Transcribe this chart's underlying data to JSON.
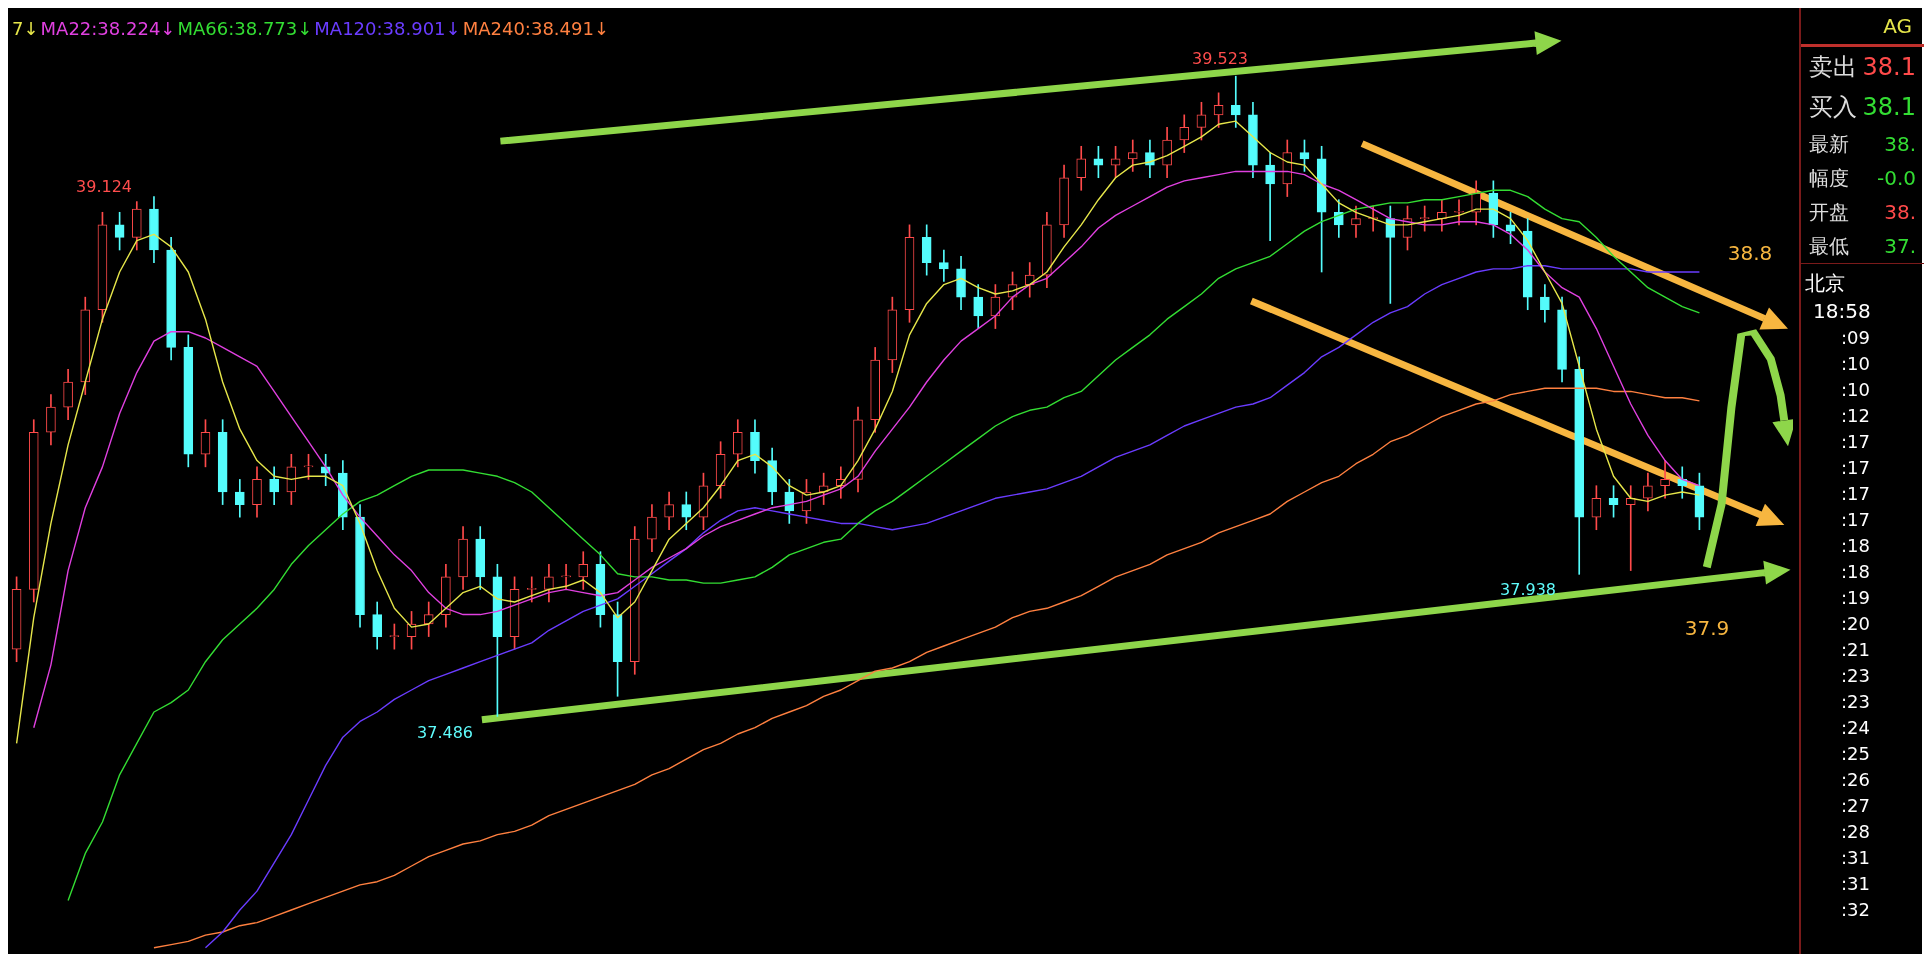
{
  "chart_data": [
    {
      "type": "candlestick",
      "legend": "top left",
      "tick_labels": false,
      "ylim": [
        36.73,
        39.74
      ],
      "categories": [
        null,
        null,
        null,
        null,
        null,
        null,
        null,
        null,
        null,
        null,
        null,
        null,
        null,
        null,
        null,
        null,
        null,
        null,
        null,
        null,
        null,
        null,
        null,
        null,
        null,
        null,
        null,
        null,
        null,
        null,
        null,
        null,
        null,
        null,
        null,
        null,
        null,
        null,
        null,
        null,
        null,
        null,
        null,
        null,
        null,
        null,
        null,
        null,
        null,
        null,
        null,
        null,
        null,
        null,
        null,
        null,
        null,
        null,
        null,
        null,
        null,
        null,
        null,
        null,
        null,
        null,
        null,
        null,
        null,
        null,
        null,
        null,
        null,
        null,
        null,
        null,
        null,
        null,
        null,
        null,
        null,
        null,
        null,
        null,
        null,
        null,
        null,
        null,
        null,
        null,
        null,
        null,
        null,
        null,
        null,
        null,
        null,
        null,
        null
      ],
      "ohlc": [
        [
          37.7,
          37.93,
          37.66,
          37.89
        ],
        [
          37.89,
          38.43,
          37.85,
          38.39
        ],
        [
          38.39,
          38.51,
          38.35,
          38.47
        ],
        [
          38.47,
          38.59,
          38.43,
          38.55
        ],
        [
          38.55,
          38.82,
          38.51,
          38.78
        ],
        [
          38.78,
          39.09,
          38.74,
          39.05
        ],
        [
          39.05,
          39.09,
          38.97,
          39.01
        ],
        [
          39.01,
          39.124,
          38.97,
          39.1
        ],
        [
          39.1,
          39.14,
          38.93,
          38.97
        ],
        [
          38.97,
          39.01,
          38.62,
          38.66
        ],
        [
          38.66,
          38.7,
          38.28,
          38.32
        ],
        [
          38.32,
          38.43,
          38.28,
          38.39
        ],
        [
          38.39,
          38.43,
          38.16,
          38.2
        ],
        [
          38.2,
          38.24,
          38.12,
          38.16
        ],
        [
          38.16,
          38.28,
          38.12,
          38.24
        ],
        [
          38.24,
          38.28,
          38.16,
          38.2
        ],
        [
          38.2,
          38.32,
          38.16,
          38.28
        ],
        [
          38.28,
          38.32,
          38.24,
          38.28
        ],
        [
          38.28,
          38.32,
          38.22,
          38.26
        ],
        [
          38.26,
          38.3,
          38.08,
          38.12
        ],
        [
          38.12,
          38.16,
          37.77,
          37.81
        ],
        [
          37.81,
          37.85,
          37.7,
          37.74
        ],
        [
          37.74,
          37.78,
          37.7,
          37.74
        ],
        [
          37.74,
          37.82,
          37.7,
          37.78
        ],
        [
          37.78,
          37.85,
          37.74,
          37.81
        ],
        [
          37.81,
          37.97,
          37.77,
          37.93
        ],
        [
          37.93,
          38.09,
          37.89,
          38.05
        ],
        [
          38.05,
          38.09,
          37.89,
          37.93
        ],
        [
          37.93,
          37.97,
          37.486,
          37.74
        ],
        [
          37.74,
          37.93,
          37.7,
          37.89
        ],
        [
          37.89,
          37.93,
          37.85,
          37.89
        ],
        [
          37.89,
          37.97,
          37.85,
          37.93
        ],
        [
          37.93,
          37.97,
          37.89,
          37.93
        ],
        [
          37.93,
          38.01,
          37.89,
          37.97
        ],
        [
          37.97,
          38.01,
          37.77,
          37.81
        ],
        [
          37.81,
          37.85,
          37.55,
          37.66
        ],
        [
          37.66,
          38.09,
          37.62,
          38.05
        ],
        [
          38.05,
          38.16,
          38.01,
          38.12
        ],
        [
          38.12,
          38.2,
          38.08,
          38.16
        ],
        [
          38.16,
          38.2,
          38.08,
          38.12
        ],
        [
          38.12,
          38.26,
          38.08,
          38.22
        ],
        [
          38.22,
          38.36,
          38.18,
          38.32
        ],
        [
          38.32,
          38.43,
          38.28,
          38.39
        ],
        [
          38.39,
          38.43,
          38.26,
          38.3
        ],
        [
          38.3,
          38.34,
          38.16,
          38.2
        ],
        [
          38.2,
          38.24,
          38.1,
          38.14
        ],
        [
          38.14,
          38.24,
          38.1,
          38.2
        ],
        [
          38.2,
          38.26,
          38.16,
          38.22
        ],
        [
          38.22,
          38.28,
          38.18,
          38.24
        ],
        [
          38.24,
          38.47,
          38.2,
          38.43
        ],
        [
          38.43,
          38.66,
          38.39,
          38.62
        ],
        [
          38.62,
          38.82,
          38.58,
          38.78
        ],
        [
          38.78,
          39.05,
          38.74,
          39.01
        ],
        [
          39.01,
          39.05,
          38.89,
          38.93
        ],
        [
          38.93,
          38.97,
          38.87,
          38.91
        ],
        [
          38.91,
          38.95,
          38.78,
          38.82
        ],
        [
          38.82,
          38.86,
          38.72,
          38.76
        ],
        [
          38.76,
          38.86,
          38.72,
          38.82
        ],
        [
          38.82,
          38.9,
          38.78,
          38.86
        ],
        [
          38.86,
          38.93,
          38.82,
          38.89
        ],
        [
          38.89,
          39.09,
          38.85,
          39.05
        ],
        [
          39.05,
          39.24,
          39.01,
          39.2
        ],
        [
          39.2,
          39.3,
          39.16,
          39.26
        ],
        [
          39.26,
          39.3,
          39.2,
          39.24
        ],
        [
          39.24,
          39.3,
          39.2,
          39.26
        ],
        [
          39.26,
          39.32,
          39.22,
          39.28
        ],
        [
          39.28,
          39.32,
          39.2,
          39.24
        ],
        [
          39.24,
          39.36,
          39.2,
          39.32
        ],
        [
          39.32,
          39.4,
          39.28,
          39.36
        ],
        [
          39.36,
          39.44,
          39.32,
          39.4
        ],
        [
          39.4,
          39.47,
          39.36,
          39.43
        ],
        [
          39.43,
          39.523,
          39.36,
          39.4
        ],
        [
          39.4,
          39.44,
          39.2,
          39.24
        ],
        [
          39.24,
          39.28,
          39.0,
          39.18
        ],
        [
          39.18,
          39.32,
          39.14,
          39.28
        ],
        [
          39.28,
          39.32,
          39.22,
          39.26
        ],
        [
          39.26,
          39.3,
          38.9,
          39.09
        ],
        [
          39.09,
          39.13,
          39.01,
          39.05
        ],
        [
          39.05,
          39.11,
          39.01,
          39.07
        ],
        [
          39.07,
          39.11,
          39.03,
          39.07
        ],
        [
          39.07,
          39.11,
          38.8,
          39.01
        ],
        [
          39.01,
          39.11,
          38.97,
          39.07
        ],
        [
          39.07,
          39.11,
          39.03,
          39.07
        ],
        [
          39.07,
          39.13,
          39.03,
          39.09
        ],
        [
          39.09,
          39.13,
          39.05,
          39.09
        ],
        [
          39.09,
          39.19,
          39.05,
          39.15
        ],
        [
          39.15,
          39.19,
          39.01,
          39.05
        ],
        [
          39.05,
          39.09,
          38.99,
          39.03
        ],
        [
          39.03,
          39.07,
          38.78,
          38.82
        ],
        [
          38.82,
          38.86,
          38.74,
          38.78
        ],
        [
          38.78,
          38.82,
          38.55,
          38.59
        ],
        [
          38.59,
          38.63,
          37.938,
          38.12
        ],
        [
          38.12,
          38.22,
          38.08,
          38.18
        ],
        [
          38.18,
          38.22,
          38.12,
          38.16
        ],
        [
          38.16,
          38.22,
          37.95,
          38.18
        ],
        [
          38.18,
          38.26,
          38.14,
          38.22
        ],
        [
          38.22,
          38.3,
          38.18,
          38.24
        ],
        [
          38.24,
          38.28,
          38.18,
          38.22
        ],
        [
          38.22,
          38.26,
          38.08,
          38.12
        ]
      ],
      "colors": [
        "#ff4a4a",
        "#ff4a4a",
        "#ff4a4a",
        "#ff4a4a",
        "#ff4a4a",
        "#ff4a4a",
        "#54fcfc",
        "#ff4a4a",
        "#54fcfc",
        "#54fcfc",
        "#54fcfc",
        "#ff4a4a",
        "#54fcfc",
        "#54fcfc",
        "#ff4a4a",
        "#54fcfc",
        "#ff4a4a",
        "#ff4a4a",
        "#54fcfc",
        "#54fcfc",
        "#54fcfc",
        "#54fcfc",
        "#ff4a4a",
        "#ff4a4a",
        "#ff4a4a",
        "#ff4a4a",
        "#ff4a4a",
        "#54fcfc",
        "#54fcfc",
        "#ff4a4a",
        "#ff4a4a",
        "#ff4a4a",
        "#ff4a4a",
        "#ff4a4a",
        "#54fcfc",
        "#54fcfc",
        "#ff4a4a",
        "#ff4a4a",
        "#ff4a4a",
        "#54fcfc",
        "#ff4a4a",
        "#ff4a4a",
        "#ff4a4a",
        "#54fcfc",
        "#54fcfc",
        "#54fcfc",
        "#ff4a4a",
        "#ff4a4a",
        "#ff4a4a",
        "#ff4a4a",
        "#ff4a4a",
        "#ff4a4a",
        "#ff4a4a",
        "#54fcfc",
        "#54fcfc",
        "#54fcfc",
        "#54fcfc",
        "#ff4a4a",
        "#ff4a4a",
        "#ff4a4a",
        "#ff4a4a",
        "#ff4a4a",
        "#ff4a4a",
        "#54fcfc",
        "#ff4a4a",
        "#ff4a4a",
        "#54fcfc",
        "#ff4a4a",
        "#ff4a4a",
        "#ff4a4a",
        "#ff4a4a",
        "#54fcfc",
        "#54fcfc",
        "#54fcfc",
        "#ff4a4a",
        "#54fcfc",
        "#54fcfc",
        "#54fcfc",
        "#ff4a4a",
        "#ff4a4a",
        "#54fcfc",
        "#ff4a4a",
        "#ff4a4a",
        "#ff4a4a",
        "#ff4a4a",
        "#ff4a4a",
        "#54fcfc",
        "#54fcfc",
        "#54fcfc",
        "#54fcfc",
        "#54fcfc",
        "#54fcfc",
        "#ff4a4a",
        "#54fcfc",
        "#ff4a4a",
        "#ff4a4a",
        "#ff4a4a",
        "#54fcfc",
        "#54fcfc"
      ],
      "series": [
        {
          "name": "7↓",
          "type": "line",
          "color": "#e6e64a",
          "values": [
            37.4,
            37.8,
            38.1,
            38.35,
            38.55,
            38.75,
            38.9,
            39.0,
            39.02,
            38.98,
            38.9,
            38.75,
            38.55,
            38.4,
            38.3,
            38.25,
            38.24,
            38.25,
            38.25,
            38.22,
            38.1,
            37.95,
            37.83,
            37.77,
            37.78,
            37.83,
            37.88,
            37.9,
            37.86,
            37.85,
            37.87,
            37.89,
            37.9,
            37.92,
            37.88,
            37.8,
            37.85,
            37.95,
            38.05,
            38.1,
            38.15,
            38.22,
            38.3,
            38.32,
            38.28,
            38.22,
            38.19,
            38.2,
            38.22,
            38.3,
            38.4,
            38.52,
            38.7,
            38.8,
            38.86,
            38.88,
            38.85,
            38.83,
            38.84,
            38.86,
            38.9,
            38.98,
            39.05,
            39.13,
            39.2,
            39.24,
            39.25,
            39.27,
            39.3,
            39.33,
            39.37,
            39.38,
            39.33,
            39.28,
            39.25,
            39.24,
            39.18,
            39.12,
            39.09,
            39.07,
            39.05,
            39.05,
            39.06,
            39.07,
            39.08,
            39.1,
            39.1,
            39.07,
            39.0,
            38.9,
            38.8,
            38.6,
            38.4,
            38.25,
            38.18,
            38.17,
            38.19,
            38.2,
            38.19
          ]
        },
        {
          "name": "MA22:38.224↓",
          "type": "line",
          "color": "#e040e0",
          "values": [
            null,
            37.45,
            37.65,
            37.95,
            38.15,
            38.28,
            38.45,
            38.58,
            38.68,
            38.71,
            38.71,
            38.69,
            38.66,
            38.63,
            38.6,
            38.52,
            38.44,
            38.36,
            38.28,
            38.19,
            38.12,
            38.06,
            38.0,
            37.95,
            37.88,
            37.83,
            37.81,
            37.81,
            37.82,
            37.84,
            37.86,
            37.88,
            37.89,
            37.88,
            37.87,
            37.88,
            37.92,
            37.96,
            37.99,
            38.02,
            38.06,
            38.09,
            38.11,
            38.13,
            38.15,
            38.16,
            38.17,
            38.19,
            38.21,
            38.25,
            38.33,
            38.4,
            38.47,
            38.55,
            38.62,
            38.68,
            38.72,
            38.76,
            38.82,
            38.86,
            38.88,
            38.93,
            38.98,
            39.04,
            39.08,
            39.11,
            39.14,
            39.17,
            39.19,
            39.2,
            39.21,
            39.22,
            39.22,
            39.22,
            39.22,
            39.21,
            39.18,
            39.16,
            39.13,
            39.1,
            39.07,
            39.06,
            39.05,
            39.05,
            39.06,
            39.06,
            39.05,
            39.02,
            38.97,
            38.9,
            38.85,
            38.82,
            38.72,
            38.6,
            38.48,
            38.38,
            38.3,
            38.24,
            38.22
          ]
        },
        {
          "name": "MA66:38.773↓",
          "type": "line",
          "color": "#33dd33",
          "values": [
            null,
            null,
            null,
            36.9,
            37.05,
            37.15,
            37.3,
            37.4,
            37.5,
            37.53,
            37.57,
            37.66,
            37.73,
            37.78,
            37.83,
            37.89,
            37.97,
            38.03,
            38.08,
            38.13,
            38.17,
            38.19,
            38.22,
            38.25,
            38.27,
            38.27,
            38.27,
            38.26,
            38.25,
            38.23,
            38.2,
            38.15,
            38.1,
            38.05,
            38.0,
            37.94,
            37.93,
            37.93,
            37.92,
            37.92,
            37.91,
            37.91,
            37.92,
            37.93,
            37.96,
            38.0,
            38.02,
            38.04,
            38.05,
            38.1,
            38.14,
            38.17,
            38.21,
            38.25,
            38.29,
            38.33,
            38.37,
            38.41,
            38.44,
            38.46,
            38.47,
            38.5,
            38.52,
            38.57,
            38.62,
            38.66,
            38.7,
            38.75,
            38.79,
            38.83,
            38.88,
            38.91,
            38.93,
            38.95,
            38.99,
            39.03,
            39.06,
            39.08,
            39.1,
            39.11,
            39.12,
            39.12,
            39.13,
            39.13,
            39.14,
            39.15,
            39.16,
            39.16,
            39.14,
            39.1,
            39.07,
            39.06,
            39.01,
            38.95,
            38.9,
            38.85,
            38.82,
            38.79,
            38.77
          ]
        },
        {
          "name": "MA120:38.901↓",
          "type": "line",
          "color": "#6a3cff",
          "values": [
            null,
            null,
            null,
            null,
            null,
            null,
            null,
            null,
            null,
            null,
            null,
            36.75,
            36.8,
            36.87,
            36.93,
            37.02,
            37.11,
            37.22,
            37.33,
            37.42,
            37.47,
            37.5,
            37.54,
            37.57,
            37.6,
            37.62,
            37.64,
            37.66,
            37.68,
            37.7,
            37.72,
            37.76,
            37.79,
            37.82,
            37.84,
            37.86,
            37.9,
            37.94,
            37.98,
            38.02,
            38.07,
            38.11,
            38.14,
            38.15,
            38.14,
            38.13,
            38.12,
            38.11,
            38.1,
            38.1,
            38.09,
            38.08,
            38.09,
            38.1,
            38.12,
            38.14,
            38.16,
            38.18,
            38.19,
            38.2,
            38.21,
            38.23,
            38.25,
            38.28,
            38.31,
            38.33,
            38.35,
            38.38,
            38.41,
            38.43,
            38.45,
            38.47,
            38.48,
            38.5,
            38.54,
            38.58,
            38.63,
            38.66,
            38.7,
            38.74,
            38.77,
            38.79,
            38.83,
            38.86,
            38.88,
            38.9,
            38.91,
            38.91,
            38.92,
            38.92,
            38.91,
            38.91,
            38.91,
            38.91,
            38.91,
            38.9,
            38.9,
            38.9,
            38.9
          ]
        },
        {
          "name": "MA240:38.491↓",
          "type": "line",
          "color": "#ff8040",
          "values": [
            null,
            null,
            null,
            null,
            null,
            null,
            null,
            null,
            36.75,
            36.76,
            36.77,
            36.79,
            36.8,
            36.82,
            36.83,
            36.85,
            36.87,
            36.89,
            36.91,
            36.93,
            36.95,
            36.96,
            36.98,
            37.01,
            37.04,
            37.06,
            37.08,
            37.09,
            37.11,
            37.12,
            37.14,
            37.17,
            37.19,
            37.21,
            37.23,
            37.25,
            37.27,
            37.3,
            37.32,
            37.35,
            37.38,
            37.4,
            37.43,
            37.45,
            37.48,
            37.5,
            37.52,
            37.55,
            37.57,
            37.6,
            37.63,
            37.64,
            37.66,
            37.69,
            37.71,
            37.73,
            37.75,
            37.77,
            37.8,
            37.82,
            37.83,
            37.85,
            37.87,
            37.9,
            37.93,
            37.95,
            37.97,
            38.0,
            38.02,
            38.04,
            38.07,
            38.09,
            38.11,
            38.13,
            38.17,
            38.2,
            38.23,
            38.25,
            38.29,
            38.32,
            38.36,
            38.38,
            38.41,
            38.44,
            38.46,
            38.48,
            38.49,
            38.51,
            38.52,
            38.53,
            38.53,
            38.53,
            38.53,
            38.52,
            38.52,
            38.51,
            38.5,
            38.5,
            38.49
          ]
        }
      ],
      "annotations": [
        "39.124",
        "37.486",
        "39.523",
        "37.938",
        "38.8",
        "37.9"
      ]
    },
    {
      "type": "other",
      "annotations": [
        "AG",
        "卖出",
        "38.1",
        "买入",
        "38.1",
        "最新",
        "38.",
        "幅度",
        "-0.0",
        "开盘",
        "38.",
        "最低",
        "37.",
        "北京",
        "18:58",
        ":09",
        ":10",
        ":10",
        ":12",
        ":17",
        ":17",
        ":17",
        ":17",
        ":18",
        ":18",
        ":19",
        ":20",
        ":21",
        ":23",
        ":23",
        ":24",
        ":25",
        ":26",
        ":27",
        ":28",
        ":31",
        ":31",
        ":32"
      ]
    }
  ]
}
